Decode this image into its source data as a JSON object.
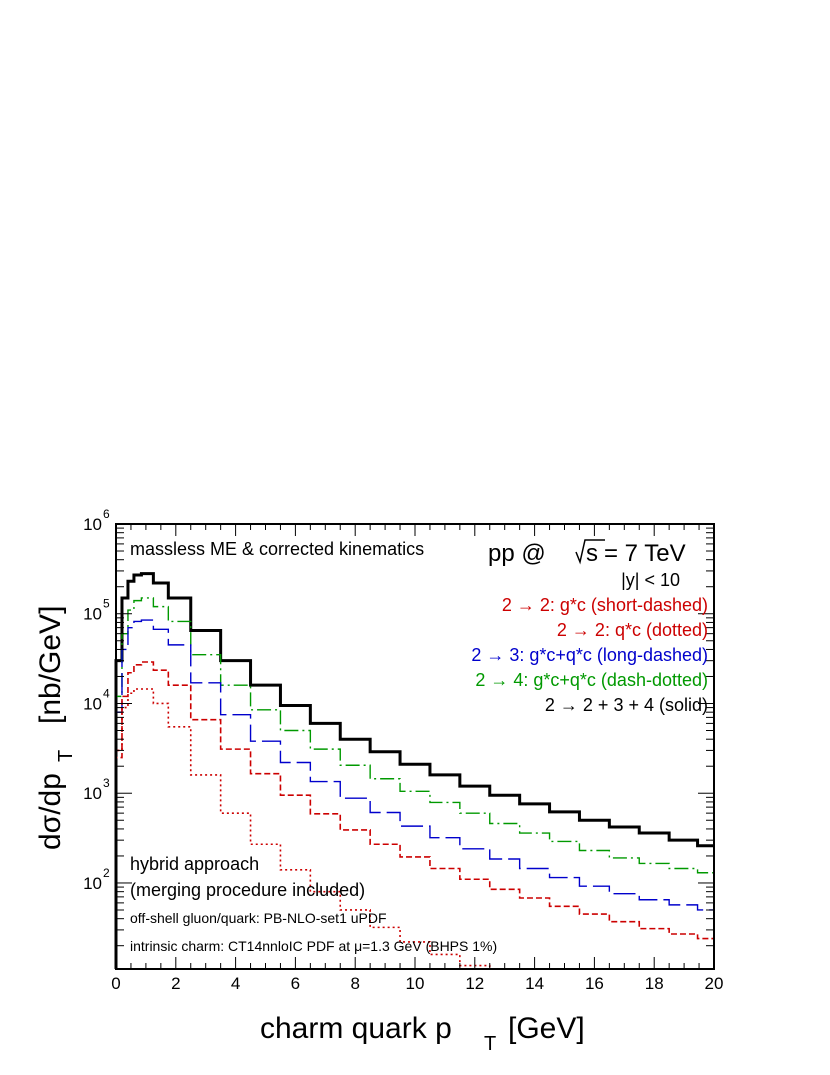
{
  "chart_data": {
    "type": "line",
    "xlabel": "charm quark p",
    "xlabel_sub": "T",
    "xlabel_unit": "[GeV]",
    "ylabel": "dσ/dp",
    "ylabel_sub": "T",
    "ylabel_unit": "[nb/GeV]",
    "xlim": [
      0,
      20
    ],
    "ylim": [
      11,
      1000000
    ],
    "yscale": "log",
    "grid": false,
    "legend_position": "top-right",
    "x_ticks": [
      "0",
      "2",
      "4",
      "6",
      "8",
      "10",
      "12",
      "14",
      "16",
      "18",
      "20"
    ],
    "y_ticks": [
      {
        "base": "10",
        "exp": "2",
        "value": 100
      },
      {
        "base": "10",
        "exp": "3",
        "value": 1000
      },
      {
        "base": "10",
        "exp": "4",
        "value": 10000
      },
      {
        "base": "10",
        "exp": "5",
        "value": 100000
      },
      {
        "base": "10",
        "exp": "6",
        "value": 1000000
      }
    ],
    "x": [
      0.1,
      0.3,
      0.5,
      0.7,
      1.0,
      1.5,
      2.0,
      3.0,
      4.0,
      5.0,
      6.0,
      7.0,
      8.0,
      9.0,
      10.0,
      11.0,
      12.0,
      13.0,
      14.0,
      15.0,
      16.0,
      17.0,
      18.0,
      19.0,
      19.9
    ],
    "series": [
      {
        "name": "2 → 2 + 3 + 4 (solid)",
        "color": "#000000",
        "values": [
          30000,
          150000,
          230000,
          270000,
          280000,
          220000,
          150000,
          65000,
          30000,
          16000,
          9500,
          6000,
          4000,
          2900,
          2100,
          1600,
          1200,
          950,
          760,
          620,
          500,
          420,
          360,
          300,
          260
        ]
      },
      {
        "name": "2 → 4: g*c+q*c (dash-dotted)",
        "color": "#009900",
        "values": [
          12000,
          60000,
          110000,
          140000,
          150000,
          120000,
          82000,
          35000,
          16000,
          8500,
          5000,
          3100,
          2050,
          1450,
          1050,
          790,
          600,
          460,
          360,
          290,
          230,
          190,
          165,
          145,
          130
        ]
      },
      {
        "name": "2 → 3: g*c+q*c (long-dashed)",
        "color": "#0000cc",
        "values": [
          8000,
          40000,
          70000,
          82000,
          85000,
          67000,
          45000,
          17000,
          7500,
          3800,
          2200,
          1350,
          880,
          610,
          430,
          320,
          240,
          185,
          145,
          115,
          92,
          76,
          65,
          57,
          50
        ]
      },
      {
        "name": "2 → 2: g*c (short-dashed)",
        "color": "#cc0000",
        "values": [
          2500,
          12000,
          22000,
          27000,
          29000,
          23500,
          16000,
          6600,
          3100,
          1650,
          950,
          590,
          390,
          270,
          195,
          145,
          110,
          85,
          68,
          55,
          45,
          37,
          31,
          27,
          24
        ]
      },
      {
        "name": "2 → 2: q*c (dotted)",
        "color": "#cc0000",
        "values": [
          3000,
          9000,
          13000,
          14500,
          14500,
          10000,
          5500,
          1600,
          600,
          270,
          140,
          80,
          50,
          32,
          22,
          16,
          12,
          11,
          11,
          11,
          11,
          11,
          11,
          11,
          11
        ]
      }
    ],
    "annotations": {
      "top_left": "massless ME & corrected kinematics",
      "energy_prefix": "pp @",
      "energy_s": "s",
      "energy_value": "= 7 TeV",
      "rapidity": "|y| < 10",
      "bottom_1": "hybrid approach",
      "bottom_2": "(merging procedure included)",
      "bottom_3": "off-shell gluon/quark: PB-NLO-set1 uPDF",
      "bottom_4": "intrinsic charm: CT14nnloIC PDF at μ=1.3 GeV (BHPS 1%)"
    }
  }
}
